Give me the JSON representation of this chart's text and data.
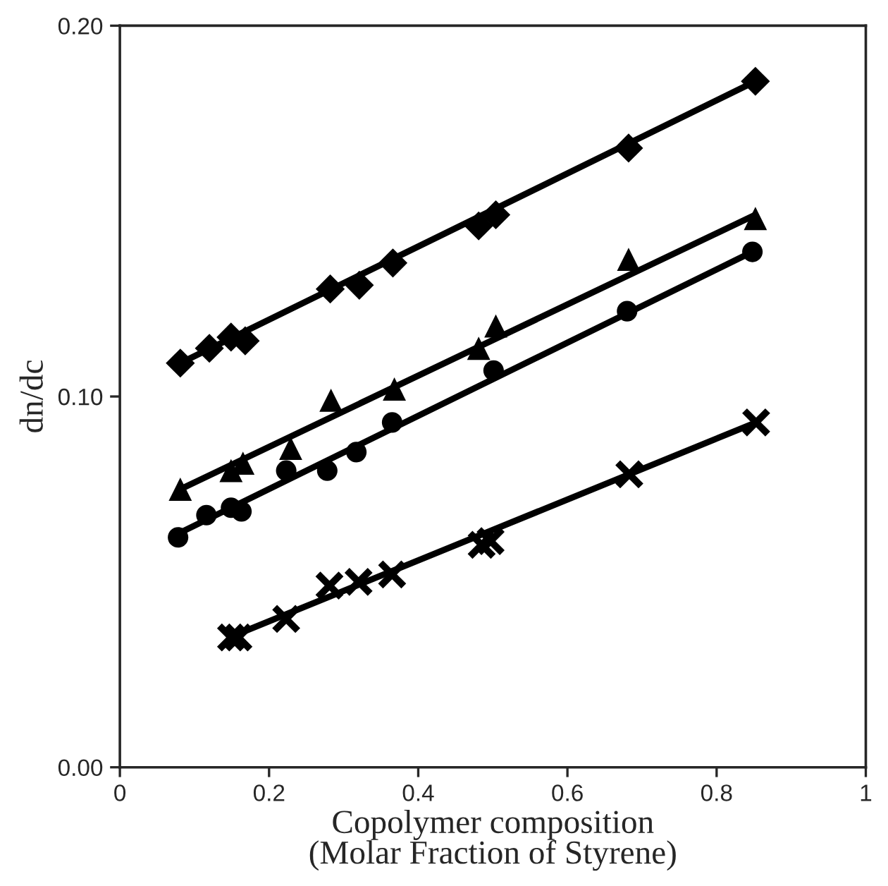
{
  "chart_data": {
    "type": "scatter",
    "xlabel": "Copolymer composition\n(Molar Fraction of Styrene)",
    "ylabel": "dn/dc",
    "xlim": [
      0,
      1
    ],
    "ylim": [
      0,
      0.2
    ],
    "xticks": [
      0,
      0.2,
      0.4,
      0.6,
      0.8,
      1
    ],
    "yticks": [
      {
        "value": 0,
        "label": "0.00"
      },
      {
        "value": 0.1,
        "label": "0.10"
      },
      {
        "value": 0.2,
        "label": "0.20"
      }
    ],
    "grid": false,
    "legend": false,
    "series": [
      {
        "type": "line",
        "color": "#000000",
        "marker": "none",
        "line_style": "solid",
        "x": [
          0.081,
          0.852
        ],
        "values": [
          0.109,
          0.185
        ]
      },
      {
        "type": "line",
        "color": "#000000",
        "marker": "none",
        "line_style": "solid",
        "x": [
          0.081,
          0.852
        ],
        "values": [
          0.075,
          0.149
        ]
      },
      {
        "type": "line",
        "color": "#000000",
        "marker": "none",
        "line_style": "solid",
        "x": [
          0.078,
          0.848
        ],
        "values": [
          0.063,
          0.139
        ]
      },
      {
        "type": "line",
        "color": "#000000",
        "marker": "none",
        "line_style": "solid",
        "x": [
          0.159,
          0.853
        ],
        "values": [
          0.036,
          0.093
        ]
      },
      {
        "color": "#000000",
        "marker": "diamond",
        "x": [
          0.081,
          0.12,
          0.149,
          0.168,
          0.282,
          0.321,
          0.366,
          0.481,
          0.504,
          0.682,
          0.852
        ],
        "values": [
          0.109,
          0.113,
          0.116,
          0.115,
          0.129,
          0.13,
          0.136,
          0.146,
          0.149,
          0.167,
          0.185
        ]
      },
      {
        "color": "#000000",
        "marker": "triangle",
        "x": [
          0.081,
          0.149,
          0.165,
          0.229,
          0.283,
          0.368,
          0.481,
          0.504,
          0.682,
          0.852
        ],
        "values": [
          0.075,
          0.08,
          0.082,
          0.086,
          0.099,
          0.102,
          0.113,
          0.119,
          0.137,
          0.148
        ]
      },
      {
        "color": "#000000",
        "marker": "circle",
        "x": [
          0.078,
          0.116,
          0.149,
          0.163,
          0.223,
          0.278,
          0.317,
          0.365,
          0.501,
          0.68,
          0.848
        ],
        "values": [
          0.062,
          0.068,
          0.07,
          0.069,
          0.08,
          0.08,
          0.085,
          0.093,
          0.107,
          0.123,
          0.139
        ]
      },
      {
        "color": "#000000",
        "marker": "cross",
        "x": [
          0.149,
          0.159,
          0.223,
          0.281,
          0.32,
          0.365,
          0.485,
          0.497,
          0.683,
          0.853
        ],
        "values": [
          0.035,
          0.035,
          0.04,
          0.049,
          0.05,
          0.052,
          0.06,
          0.061,
          0.079,
          0.093
        ]
      }
    ]
  }
}
